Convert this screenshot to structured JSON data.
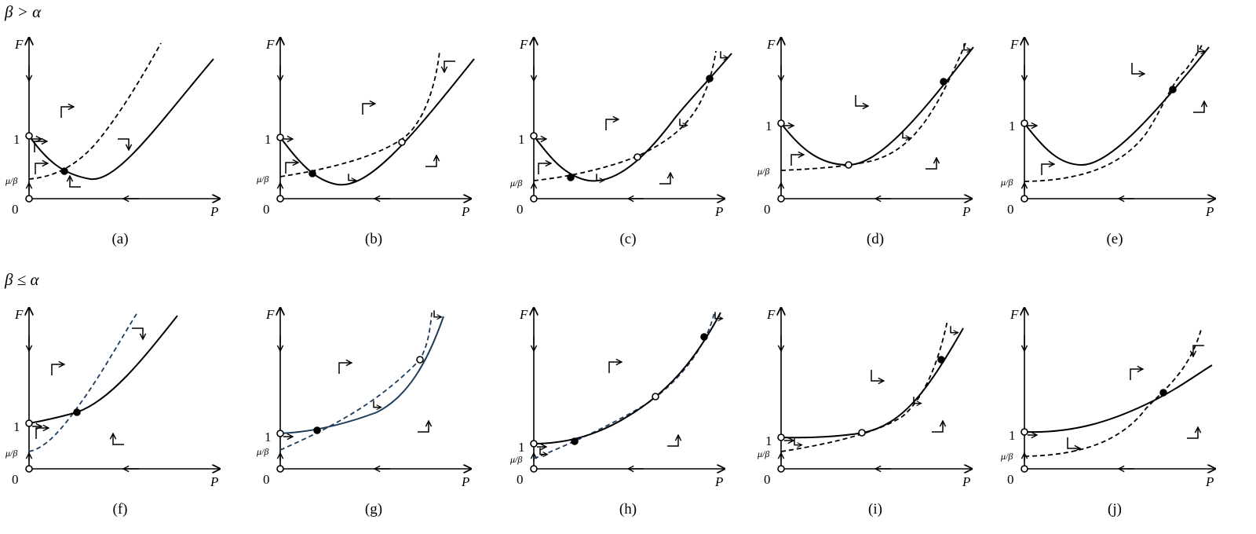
{
  "rows": [
    {
      "condition": "β > α"
    },
    {
      "condition": "β ≤ α"
    }
  ],
  "axis_labels": {
    "y": "F",
    "x": "P",
    "origin": "0",
    "one": "1",
    "mu_beta": "μ/β"
  },
  "panels": [
    {
      "id": "a",
      "caption": "(a)"
    },
    {
      "id": "b",
      "caption": "(b)"
    },
    {
      "id": "c",
      "caption": "(c)"
    },
    {
      "id": "d",
      "caption": "(d)"
    },
    {
      "id": "e",
      "caption": "(e)"
    },
    {
      "id": "f",
      "caption": "(f)"
    },
    {
      "id": "g",
      "caption": "(g)"
    },
    {
      "id": "h",
      "caption": "(h)"
    },
    {
      "id": "i",
      "caption": "(i)"
    },
    {
      "id": "j",
      "caption": "(j)"
    }
  ],
  "colors": {
    "ink": "#000000",
    "navy": "#1f3b5c",
    "background": "#ffffff"
  }
}
